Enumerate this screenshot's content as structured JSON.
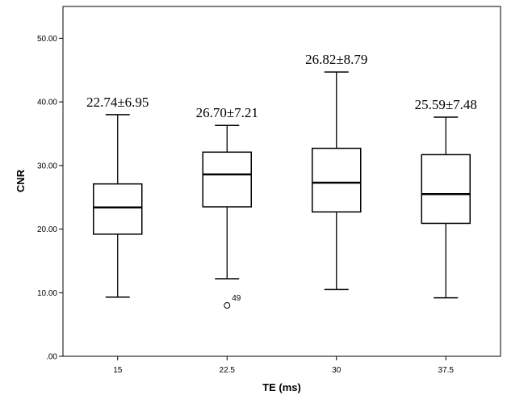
{
  "chart_data": {
    "type": "box",
    "xlabel": "TE (ms)",
    "ylabel": "CNR",
    "ylim": [
      0,
      55
    ],
    "yticks": [
      ".00",
      "10.00",
      "20.00",
      "30.00",
      "40.00",
      "50.00"
    ],
    "ytick_values": [
      0,
      10,
      20,
      30,
      40,
      50
    ],
    "categories": [
      "15",
      "22.5",
      "30",
      "37.5"
    ],
    "boxes": [
      {
        "category": "15",
        "whisker_low": 9.3,
        "q1": 19.2,
        "median": 23.4,
        "q3": 27.1,
        "whisker_high": 38.0,
        "annotation": "22.74±6.95",
        "outliers": []
      },
      {
        "category": "22.5",
        "whisker_low": 12.2,
        "q1": 23.5,
        "median": 28.6,
        "q3": 32.1,
        "whisker_high": 36.3,
        "annotation": "26.70±7.21",
        "outliers": [
          {
            "value": 8.0,
            "label": "49"
          }
        ]
      },
      {
        "category": "30",
        "whisker_low": 10.5,
        "q1": 22.7,
        "median": 27.3,
        "q3": 32.7,
        "whisker_high": 44.7,
        "annotation": "26.82±8.79",
        "outliers": []
      },
      {
        "category": "37.5",
        "whisker_low": 9.2,
        "q1": 20.9,
        "median": 25.5,
        "q3": 31.7,
        "whisker_high": 37.6,
        "annotation": "25.59±7.48",
        "outliers": []
      }
    ],
    "grid": false,
    "legend": "none"
  }
}
